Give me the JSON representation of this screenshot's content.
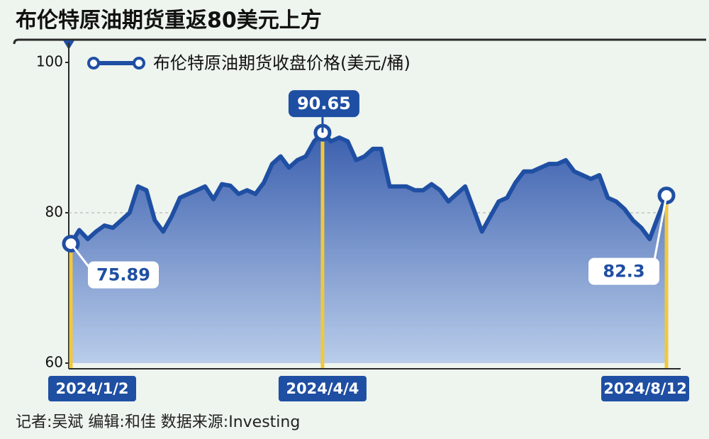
{
  "chart_data": {
    "type": "area",
    "title": "布伦特原油期货重返80美元上方",
    "footer": "记者:吴斌  编辑:和佳  数据来源:Investing",
    "categories": [
      "2024/1/2",
      null,
      null,
      null,
      null,
      null,
      null,
      null,
      null,
      null,
      null,
      null,
      null,
      null,
      null,
      null,
      null,
      null,
      null,
      null,
      null,
      null,
      null,
      null,
      null,
      null,
      null,
      null,
      null,
      null,
      "2024/4/4",
      null,
      null,
      null,
      null,
      null,
      null,
      null,
      null,
      null,
      null,
      null,
      null,
      null,
      null,
      null,
      null,
      null,
      null,
      null,
      null,
      null,
      null,
      null,
      null,
      null,
      null,
      null,
      null,
      null,
      null,
      null,
      null,
      null,
      null,
      null,
      null,
      null,
      null,
      null,
      null,
      "2024/8/12"
    ],
    "series": [
      {
        "name": "布伦特原油期货收盘价格(美元/桶)",
        "color": "#1f4fa3",
        "values": [
          75.89,
          77.7,
          76.5,
          77.5,
          78.3,
          78.0,
          79.0,
          80.0,
          83.5,
          83.0,
          79.0,
          77.5,
          79.5,
          82.0,
          82.5,
          83.0,
          83.5,
          81.8,
          83.8,
          83.6,
          82.5,
          83.0,
          82.5,
          84.0,
          86.5,
          87.5,
          86.0,
          87.0,
          87.5,
          89.5,
          90.65,
          89.5,
          90.0,
          89.5,
          87.0,
          87.5,
          88.5,
          88.5,
          83.5,
          83.5,
          83.5,
          83.0,
          83.0,
          83.8,
          83.0,
          81.5,
          82.5,
          83.5,
          80.5,
          77.5,
          79.5,
          81.5,
          82.0,
          84.0,
          85.5,
          85.5,
          86.0,
          86.5,
          86.5,
          87.0,
          85.5,
          85.0,
          84.5,
          85.0,
          82.0,
          81.5,
          80.5,
          79.0,
          78.0,
          76.5,
          79.5,
          82.3
        ]
      }
    ],
    "ylim": [
      60,
      100
    ],
    "yticks": [
      60,
      80,
      100
    ],
    "grid": true
  }
}
